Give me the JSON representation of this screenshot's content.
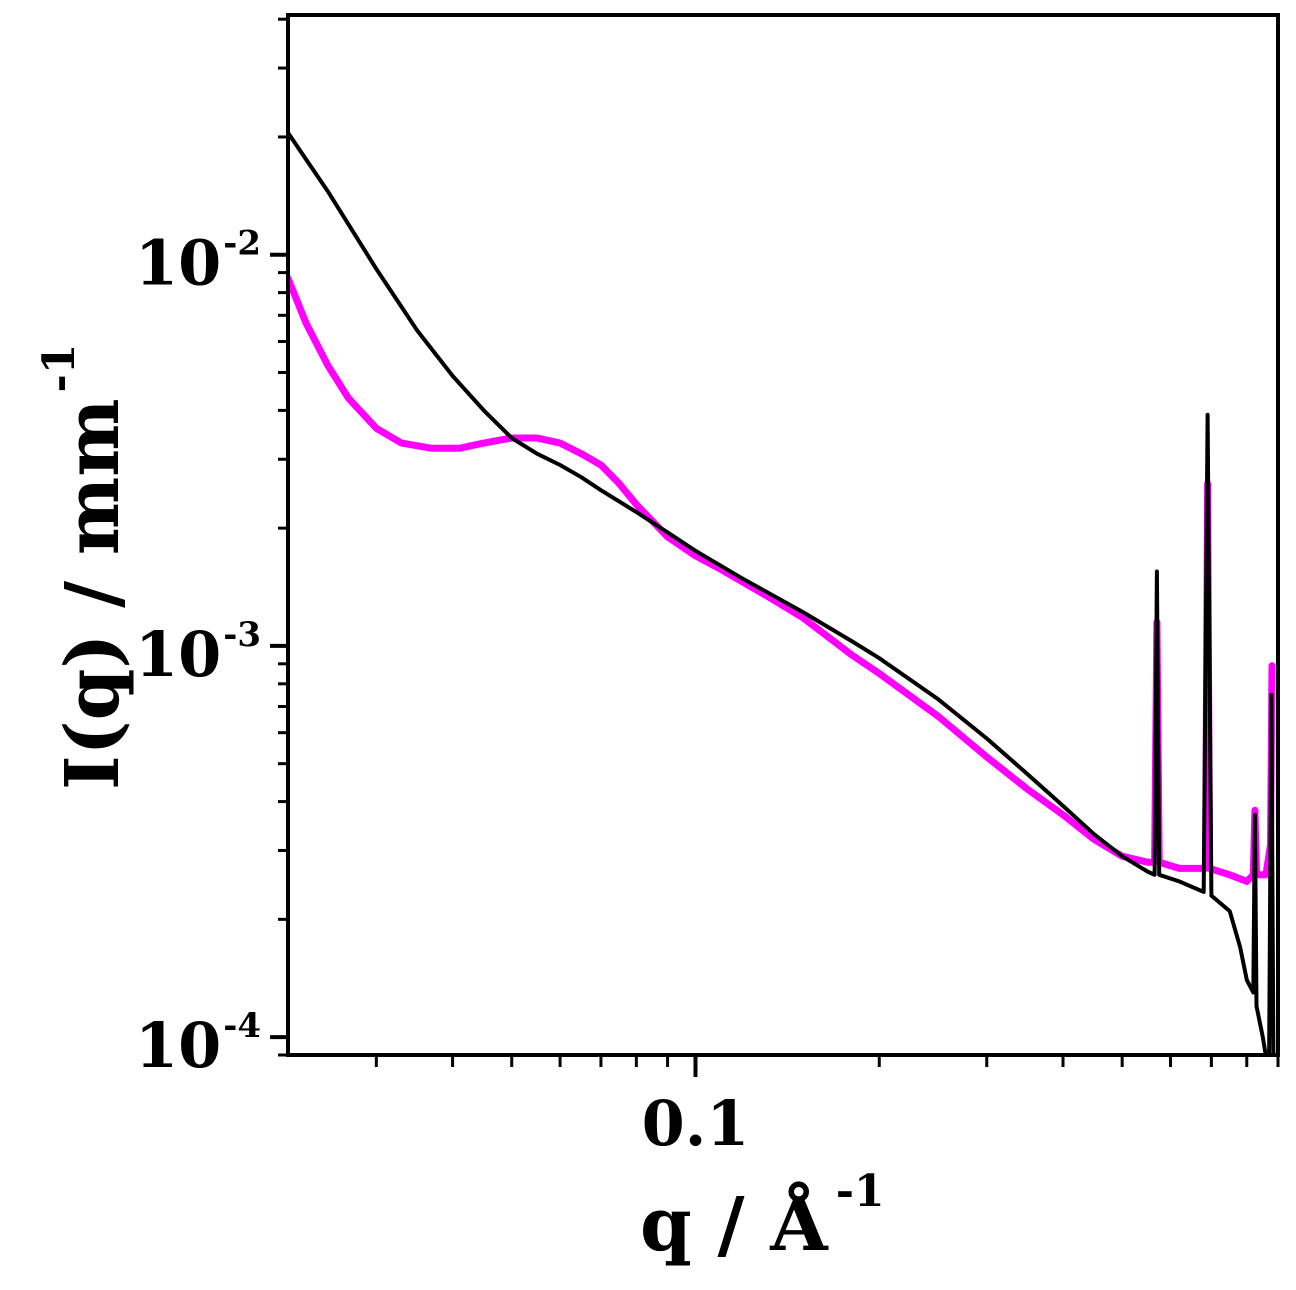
{
  "chart_data": {
    "type": "line",
    "title": "",
    "xlabel": {
      "base": "q / Å",
      "sup": "-1"
    },
    "ylabel": {
      "base": "I(q) / mm",
      "sup": "-1"
    },
    "x_scale": "log",
    "y_scale": "log",
    "xlim": [
      0.0215,
      0.9
    ],
    "ylim": [
      9e-05,
      0.041
    ],
    "x_ticks": [
      {
        "value": 0.1,
        "label": "0.1"
      }
    ],
    "y_ticks": [
      {
        "value": 0.0001,
        "base": "10",
        "exp": "-4"
      },
      {
        "value": 0.001,
        "base": "10",
        "exp": "-3"
      },
      {
        "value": 0.01,
        "base": "10",
        "exp": "-2"
      }
    ],
    "grid": false,
    "legend": "none",
    "series": [
      {
        "color": "#ff00ff",
        "points": [
          [
            0.0215,
            0.0087
          ],
          [
            0.023,
            0.0067
          ],
          [
            0.025,
            0.0052
          ],
          [
            0.027,
            0.0043
          ],
          [
            0.03,
            0.0036
          ],
          [
            0.033,
            0.0033
          ],
          [
            0.037,
            0.0032
          ],
          [
            0.041,
            0.0032
          ],
          [
            0.045,
            0.0033
          ],
          [
            0.05,
            0.0034
          ],
          [
            0.055,
            0.0034
          ],
          [
            0.06,
            0.0033
          ],
          [
            0.065,
            0.0031
          ],
          [
            0.07,
            0.0029
          ],
          [
            0.075,
            0.0026
          ],
          [
            0.08,
            0.0023
          ],
          [
            0.09,
            0.0019
          ],
          [
            0.1,
            0.0017
          ],
          [
            0.11,
            0.00157
          ],
          [
            0.13,
            0.00135
          ],
          [
            0.15,
            0.00118
          ],
          [
            0.18,
            0.00095
          ],
          [
            0.2,
            0.00085
          ],
          [
            0.25,
            0.00066
          ],
          [
            0.3,
            0.00052
          ],
          [
            0.35,
            0.00043
          ],
          [
            0.4,
            0.00037
          ],
          [
            0.45,
            0.00032
          ],
          [
            0.5,
            0.00029
          ],
          [
            0.55,
            0.00028
          ],
          [
            0.565,
            0.00028
          ],
          [
            0.57,
            0.00115
          ],
          [
            0.575,
            0.00028
          ],
          [
            0.62,
            0.00027
          ],
          [
            0.685,
            0.00027
          ],
          [
            0.69,
            0.0026
          ],
          [
            0.695,
            0.00027
          ],
          [
            0.75,
            0.00026
          ],
          [
            0.8,
            0.00025
          ],
          [
            0.82,
            0.00026
          ],
          [
            0.825,
            0.00038
          ],
          [
            0.83,
            0.00026
          ],
          [
            0.86,
            0.00026
          ],
          [
            0.875,
            0.00031
          ],
          [
            0.88,
            0.00089
          ]
        ]
      },
      {
        "color": "#000000",
        "points": [
          [
            0.0215,
            0.0205
          ],
          [
            0.025,
            0.0145
          ],
          [
            0.03,
            0.0092
          ],
          [
            0.035,
            0.0064
          ],
          [
            0.04,
            0.0049
          ],
          [
            0.045,
            0.004
          ],
          [
            0.05,
            0.0034
          ],
          [
            0.055,
            0.0031
          ],
          [
            0.06,
            0.0029
          ],
          [
            0.065,
            0.0027
          ],
          [
            0.07,
            0.0025
          ],
          [
            0.08,
            0.0022
          ],
          [
            0.09,
            0.00195
          ],
          [
            0.1,
            0.00175
          ],
          [
            0.12,
            0.00148
          ],
          [
            0.15,
            0.00122
          ],
          [
            0.18,
            0.00103
          ],
          [
            0.2,
            0.00093
          ],
          [
            0.25,
            0.00073
          ],
          [
            0.3,
            0.00058
          ],
          [
            0.35,
            0.00047
          ],
          [
            0.4,
            0.00039
          ],
          [
            0.45,
            0.00033
          ],
          [
            0.5,
            0.00029
          ],
          [
            0.55,
            0.000265
          ],
          [
            0.565,
            0.00026
          ],
          [
            0.57,
            0.00155
          ],
          [
            0.575,
            0.00026
          ],
          [
            0.62,
            0.00025
          ],
          [
            0.68,
            0.000235
          ],
          [
            0.69,
            0.0039
          ],
          [
            0.7,
            0.00023
          ],
          [
            0.75,
            0.00021
          ],
          [
            0.78,
            0.00017
          ],
          [
            0.8,
            0.00014
          ],
          [
            0.82,
            0.00013
          ],
          [
            0.825,
            0.00037
          ],
          [
            0.83,
            0.00012
          ],
          [
            0.85,
            0.0001
          ],
          [
            0.87,
            8e-05
          ],
          [
            0.878,
            0.00075
          ],
          [
            0.885,
            8e-05
          ]
        ]
      }
    ]
  }
}
